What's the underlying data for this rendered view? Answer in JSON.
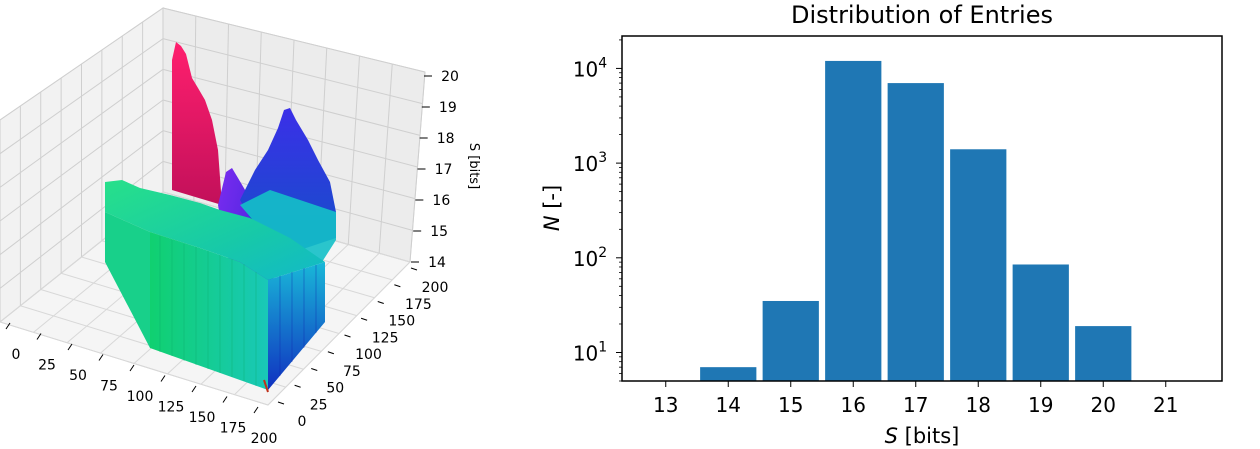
{
  "chart_data": [
    {
      "type": "surface3d",
      "xlabel": "",
      "ylabel": "",
      "zlabel": "S [bits]",
      "x_ticks": [
        "0",
        "25",
        "50",
        "75",
        "100",
        "125",
        "150",
        "175",
        "200"
      ],
      "y_ticks": [
        "0",
        "25",
        "50",
        "75",
        "100",
        "125",
        "150",
        "175",
        "200"
      ],
      "z_ticks": [
        "14",
        "15",
        "16",
        "17",
        "18",
        "19",
        "20"
      ],
      "xlim": [
        0,
        200
      ],
      "ylim": [
        0,
        200
      ],
      "zlim": [
        14,
        20
      ],
      "grid": true,
      "colors": {
        "peak_magenta": "#e0135f",
        "ridge_violet": "#6a1fe0",
        "ridge_blue": "#2432e0",
        "plateau_green": "#21d58f",
        "plateau_cyan": "#16c7c0",
        "plateau_front": "#1fe06a"
      }
    },
    {
      "type": "bar",
      "title": "Distribution of Entries",
      "xlabel_var": "S",
      "xlabel_unit": " [bits]",
      "ylabel_var": "N",
      "ylabel_unit": " [-]",
      "y_scale": "log",
      "categories": [
        14,
        15,
        16,
        17,
        18,
        19,
        20
      ],
      "values": [
        7,
        35,
        12000,
        7000,
        1400,
        85,
        19
      ],
      "xticks": [
        "13",
        "14",
        "15",
        "16",
        "17",
        "18",
        "19",
        "20",
        "21"
      ],
      "ytick_exponents": [
        "1",
        "2",
        "3",
        "4"
      ],
      "xlim": [
        12.3,
        21.9
      ],
      "ylim": [
        5,
        22000
      ],
      "color": "#1f77b4"
    }
  ]
}
